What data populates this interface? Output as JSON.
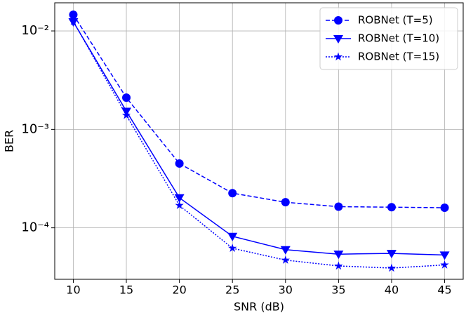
{
  "chart_data": {
    "type": "line",
    "x_label": "SNR (dB)",
    "y_label": "BER",
    "log_y": true,
    "grid": true,
    "legend": "upper right",
    "x": [
      10,
      15,
      20,
      25,
      30,
      35,
      40,
      45
    ],
    "series": [
      {
        "name": "ROBNet (T=5)",
        "color": "#0000ff",
        "linestyle": "dashed",
        "marker": "circle",
        "values": [
          0.0146,
          0.0021,
          0.00045,
          0.000225,
          0.000182,
          0.000164,
          0.000162,
          0.00016
        ]
      },
      {
        "name": "ROBNet (T=10)",
        "color": "#0000ff",
        "linestyle": "solid",
        "marker": "triangle",
        "values": [
          0.0124,
          0.00153,
          0.000202,
          8.2e-05,
          6e-05,
          5.4e-05,
          5.5e-05,
          5.3e-05
        ]
      },
      {
        "name": "ROBNet (T=15)",
        "color": "#0000ff",
        "linestyle": "dotted",
        "marker": "star",
        "values": [
          0.0125,
          0.00139,
          0.000169,
          6.2e-05,
          4.7e-05,
          4.1e-05,
          3.9e-05,
          4.2e-05
        ]
      }
    ],
    "xlim": [
      8.25,
      46.75
    ],
    "xticks": [
      10,
      15,
      20,
      25,
      30,
      35,
      40,
      45
    ],
    "ylim": [
      3e-05,
      0.0193
    ],
    "yticks": [
      {
        "value": 0.0001,
        "label": "10⁻⁴"
      },
      {
        "value": 0.001,
        "label": "10⁻³"
      },
      {
        "value": 0.01,
        "label": "10⁻²"
      }
    ]
  }
}
